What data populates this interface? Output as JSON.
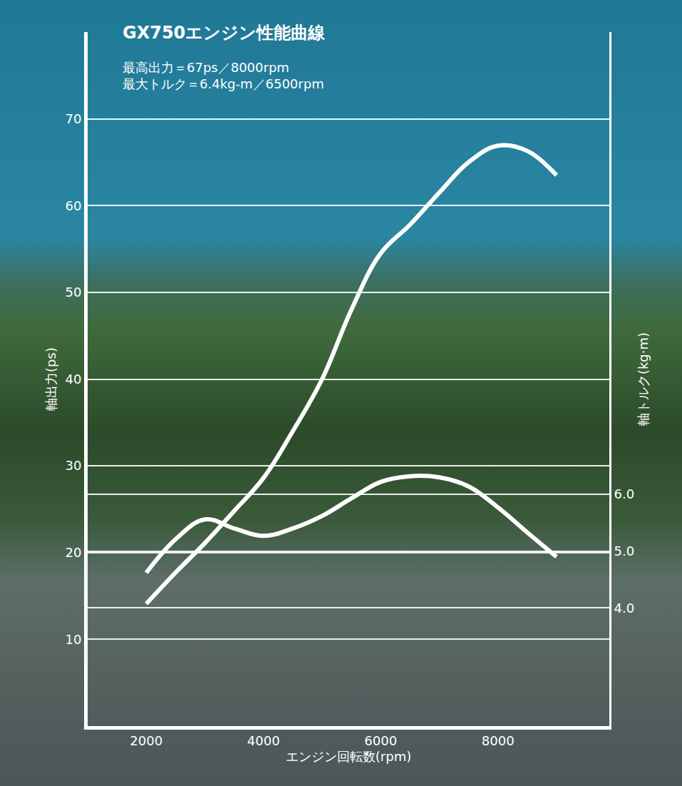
{
  "chart_data": {
    "type": "line",
    "title": "GX750エンジン性能曲線",
    "subtitle": [
      "最高出力＝67ps／8000rpm",
      "最大トルク＝6.4kg-m／6500rpm"
    ],
    "x_label": "エンジン回転数(rpm)",
    "y_label": "軸出力(ps)",
    "y2_label": "軸トルク(kg·m)",
    "x": [
      2000,
      2500,
      3000,
      3500,
      4000,
      4500,
      5000,
      5500,
      6000,
      6500,
      7000,
      7500,
      8000,
      8500,
      9000
    ],
    "series": [
      {
        "color": "#ffffff",
        "values": [
          14.1,
          17.7,
          21.1,
          24.8,
          28.6,
          34.0,
          40.0,
          48.0,
          54.5,
          57.8,
          61.5,
          65.0,
          66.9,
          66.3,
          63.5
        ]
      },
      {
        "color": "#ffffff",
        "axis": "y2",
        "values": [
          4.62,
          5.21,
          5.56,
          5.4,
          5.27,
          5.4,
          5.62,
          5.93,
          6.22,
          6.32,
          6.3,
          6.14,
          5.77,
          5.33,
          4.9
        ]
      }
    ],
    "xlim": [
      1000,
      9900
    ],
    "xticks": [
      2000,
      4000,
      6000,
      8000
    ],
    "ylim": [
      0,
      80
    ],
    "yticks": [
      10,
      20,
      30,
      40,
      50,
      60,
      70
    ],
    "y2lim": [
      1.92,
      14.14
    ],
    "y2ticks": [
      {
        "value": 4,
        "label": "4.0"
      },
      {
        "value": 5,
        "label": "5.0"
      },
      {
        "value": 6,
        "label": "6.0"
      }
    ],
    "grid": true
  }
}
